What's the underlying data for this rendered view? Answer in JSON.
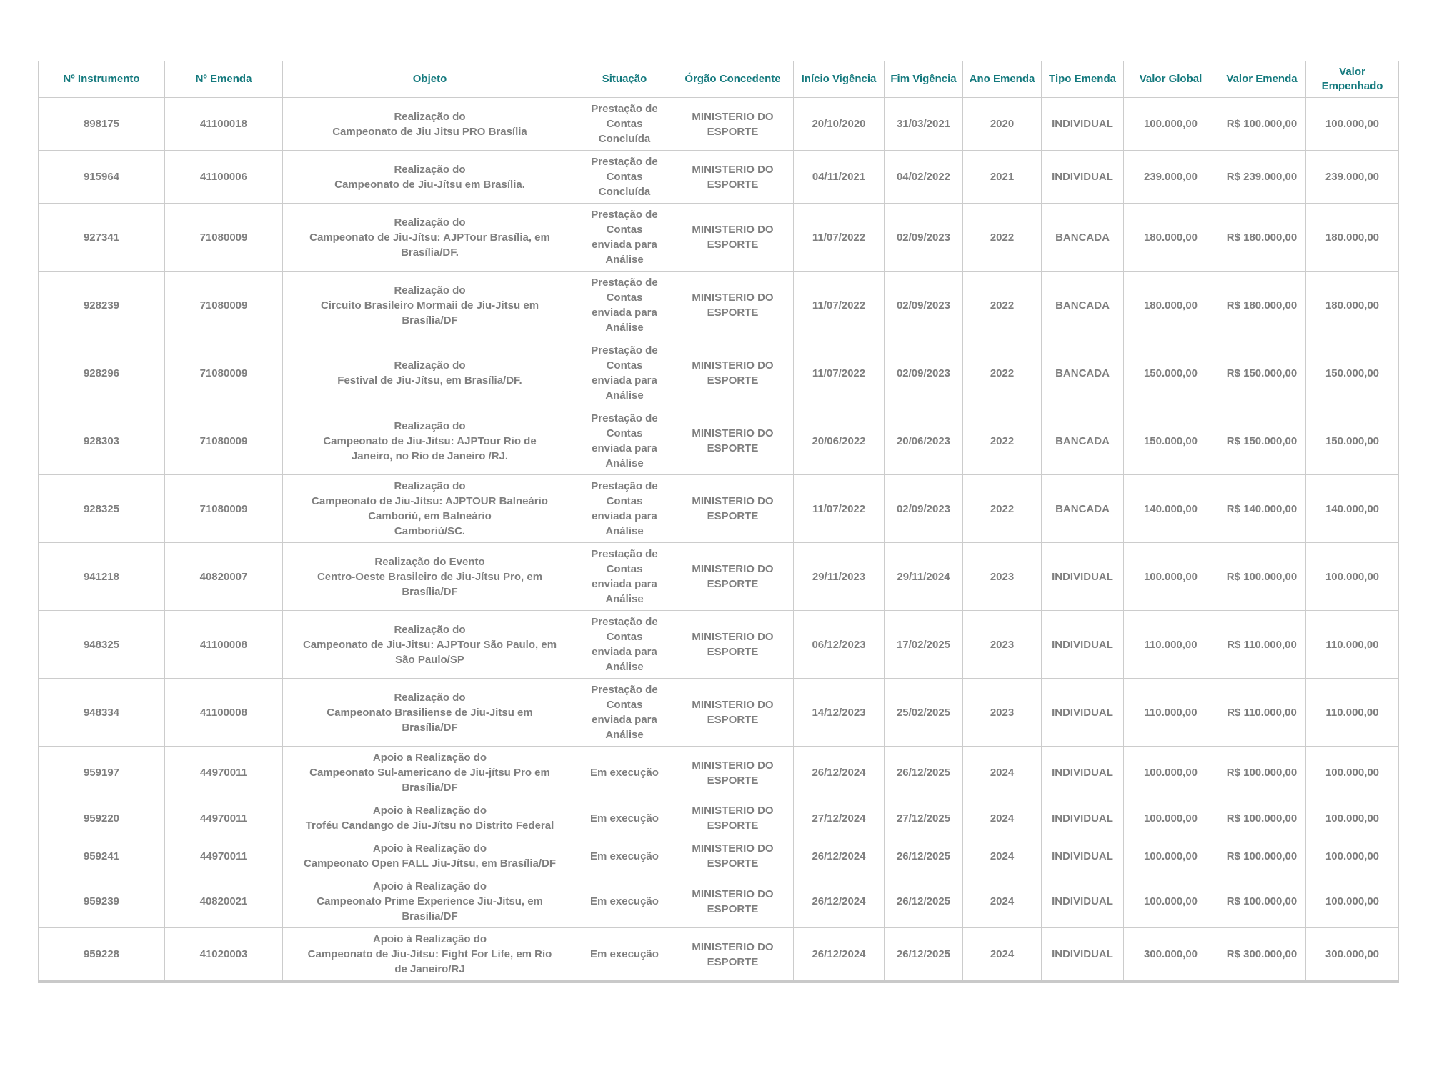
{
  "colors": {
    "header_text": "#157a7e",
    "body_text": "#7f7f7f",
    "border": "#cccccc",
    "bottom_border": "#c9c9c9",
    "background": "#ffffff"
  },
  "table": {
    "columns": [
      {
        "key": "instrumento",
        "label": "Nº Instrumento"
      },
      {
        "key": "emenda",
        "label": "Nº Emenda"
      },
      {
        "key": "objeto",
        "label": "Objeto"
      },
      {
        "key": "situacao",
        "label": "Situação"
      },
      {
        "key": "orgao",
        "label": "Órgão Concedente"
      },
      {
        "key": "inicio",
        "label": "Início Vigência"
      },
      {
        "key": "fim",
        "label": "Fim Vigência"
      },
      {
        "key": "ano",
        "label": "Ano Emenda"
      },
      {
        "key": "tipo",
        "label": "Tipo Emenda"
      },
      {
        "key": "valor_global",
        "label": "Valor Global"
      },
      {
        "key": "valor_emenda",
        "label": "Valor Emenda"
      },
      {
        "key": "valor_empenhado",
        "label": "Valor Empenhado"
      }
    ],
    "rows": [
      {
        "instrumento": "898175",
        "emenda": "41100018",
        "objeto": "Realização do\nCampeonato de Jiu Jitsu PRO Brasília",
        "situacao": "Prestação de\nContas\nConcluída",
        "orgao": "MINISTERIO DO\nESPORTE",
        "inicio": "20/10/2020",
        "fim": "31/03/2021",
        "ano": "2020",
        "tipo": "INDIVIDUAL",
        "valor_global": "100.000,00",
        "valor_emenda": "R$ 100.000,00",
        "valor_empenhado": "100.000,00"
      },
      {
        "instrumento": "915964",
        "emenda": "41100006",
        "objeto": "Realização do\nCampeonato de Jiu-Jítsu em Brasília.",
        "situacao": "Prestação de\nContas\nConcluída",
        "orgao": "MINISTERIO DO\nESPORTE",
        "inicio": "04/11/2021",
        "fim": "04/02/2022",
        "ano": "2021",
        "tipo": "INDIVIDUAL",
        "valor_global": "239.000,00",
        "valor_emenda": "R$ 239.000,00",
        "valor_empenhado": "239.000,00"
      },
      {
        "instrumento": "927341",
        "emenda": "71080009",
        "objeto": "Realização do\nCampeonato de Jiu-Jítsu: AJPTour Brasília, em\nBrasília/DF.",
        "situacao": "Prestação de\nContas\nenviada para\nAnálise",
        "orgao": "MINISTERIO DO\nESPORTE",
        "inicio": "11/07/2022",
        "fim": "02/09/2023",
        "ano": "2022",
        "tipo": "BANCADA",
        "valor_global": "180.000,00",
        "valor_emenda": "R$ 180.000,00",
        "valor_empenhado": "180.000,00"
      },
      {
        "instrumento": "928239",
        "emenda": "71080009",
        "objeto": "Realização do\nCircuito Brasileiro Mormaii de Jiu-Jitsu em\nBrasília/DF",
        "situacao": "Prestação de\nContas\nenviada para\nAnálise",
        "orgao": "MINISTERIO DO\nESPORTE",
        "inicio": "11/07/2022",
        "fim": "02/09/2023",
        "ano": "2022",
        "tipo": "BANCADA",
        "valor_global": "180.000,00",
        "valor_emenda": "R$ 180.000,00",
        "valor_empenhado": "180.000,00"
      },
      {
        "instrumento": "928296",
        "emenda": "71080009",
        "objeto": "Realização do\nFestival de Jiu-Jítsu, em Brasília/DF.",
        "situacao": "Prestação de\nContas\nenviada para\nAnálise",
        "orgao": "MINISTERIO DO\nESPORTE",
        "inicio": "11/07/2022",
        "fim": "02/09/2023",
        "ano": "2022",
        "tipo": "BANCADA",
        "valor_global": "150.000,00",
        "valor_emenda": "R$ 150.000,00",
        "valor_empenhado": "150.000,00"
      },
      {
        "instrumento": "928303",
        "emenda": "71080009",
        "objeto": "Realização do\nCampeonato de Jiu-Jitsu: AJPTour Rio de\nJaneiro, no Rio de Janeiro /RJ.",
        "situacao": "Prestação de\nContas\nenviada para\nAnálise",
        "orgao": "MINISTERIO DO\nESPORTE",
        "inicio": "20/06/2022",
        "fim": "20/06/2023",
        "ano": "2022",
        "tipo": "BANCADA",
        "valor_global": "150.000,00",
        "valor_emenda": "R$ 150.000,00",
        "valor_empenhado": "150.000,00"
      },
      {
        "instrumento": "928325",
        "emenda": "71080009",
        "objeto": "Realização do\nCampeonato de Jiu-Jítsu: AJPTOUR Balneário\nCamboriú, em Balneário\nCamboriú/SC.",
        "situacao": "Prestação de\nContas\nenviada para\nAnálise",
        "orgao": "MINISTERIO DO\nESPORTE",
        "inicio": "11/07/2022",
        "fim": "02/09/2023",
        "ano": "2022",
        "tipo": "BANCADA",
        "valor_global": "140.000,00",
        "valor_emenda": "R$ 140.000,00",
        "valor_empenhado": "140.000,00"
      },
      {
        "instrumento": "941218",
        "emenda": "40820007",
        "objeto": "Realização do Evento\nCentro-Oeste Brasileiro de Jiu-Jítsu Pro, em\nBrasília/DF",
        "situacao": "Prestação de\nContas\nenviada para\nAnálise",
        "orgao": "MINISTERIO DO\nESPORTE",
        "inicio": "29/11/2023",
        "fim": "29/11/2024",
        "ano": "2023",
        "tipo": "INDIVIDUAL",
        "valor_global": "100.000,00",
        "valor_emenda": "R$ 100.000,00",
        "valor_empenhado": "100.000,00"
      },
      {
        "instrumento": "948325",
        "emenda": "41100008",
        "objeto": "Realização do\nCampeonato de Jiu-Jitsu: AJPTour São Paulo, em\nSão Paulo/SP",
        "situacao": "Prestação de\nContas\nenviada para\nAnálise",
        "orgao": "MINISTERIO DO\nESPORTE",
        "inicio": "06/12/2023",
        "fim": "17/02/2025",
        "ano": "2023",
        "tipo": "INDIVIDUAL",
        "valor_global": "110.000,00",
        "valor_emenda": "R$ 110.000,00",
        "valor_empenhado": "110.000,00"
      },
      {
        "instrumento": "948334",
        "emenda": "41100008",
        "objeto": "Realização do\nCampeonato Brasiliense de Jiu-Jitsu em\nBrasília/DF",
        "situacao": "Prestação de\nContas\nenviada para\nAnálise",
        "orgao": "MINISTERIO DO\nESPORTE",
        "inicio": "14/12/2023",
        "fim": "25/02/2025",
        "ano": "2023",
        "tipo": "INDIVIDUAL",
        "valor_global": "110.000,00",
        "valor_emenda": "R$ 110.000,00",
        "valor_empenhado": "110.000,00"
      },
      {
        "instrumento": "959197",
        "emenda": "44970011",
        "objeto": "Apoio a Realização do\nCampeonato Sul-americano de Jiu-jítsu Pro em\nBrasília/DF",
        "situacao": "Em execução",
        "orgao": "MINISTERIO DO\nESPORTE",
        "inicio": "26/12/2024",
        "fim": "26/12/2025",
        "ano": "2024",
        "tipo": "INDIVIDUAL",
        "valor_global": "100.000,00",
        "valor_emenda": "R$ 100.000,00",
        "valor_empenhado": "100.000,00"
      },
      {
        "instrumento": "959220",
        "emenda": "44970011",
        "objeto": "Apoio à Realização do\nTroféu Candango de Jiu-Jítsu no Distrito Federal",
        "situacao": "Em execução",
        "orgao": "MINISTERIO DO\nESPORTE",
        "inicio": "27/12/2024",
        "fim": "27/12/2025",
        "ano": "2024",
        "tipo": "INDIVIDUAL",
        "valor_global": "100.000,00",
        "valor_emenda": "R$ 100.000,00",
        "valor_empenhado": "100.000,00"
      },
      {
        "instrumento": "959241",
        "emenda": "44970011",
        "objeto": "Apoio à Realização do\nCampeonato Open FALL Jiu-Jítsu, em Brasília/DF",
        "situacao": "Em execução",
        "orgao": "MINISTERIO DO\nESPORTE",
        "inicio": "26/12/2024",
        "fim": "26/12/2025",
        "ano": "2024",
        "tipo": "INDIVIDUAL",
        "valor_global": "100.000,00",
        "valor_emenda": "R$ 100.000,00",
        "valor_empenhado": "100.000,00"
      },
      {
        "instrumento": "959239",
        "emenda": "40820021",
        "objeto": "Apoio à Realização do\nCampeonato Prime Experience Jiu-Jitsu, em\nBrasília/DF",
        "situacao": "Em execução",
        "orgao": "MINISTERIO DO\nESPORTE",
        "inicio": "26/12/2024",
        "fim": "26/12/2025",
        "ano": "2024",
        "tipo": "INDIVIDUAL",
        "valor_global": "100.000,00",
        "valor_emenda": "R$ 100.000,00",
        "valor_empenhado": "100.000,00"
      },
      {
        "instrumento": "959228",
        "emenda": "41020003",
        "objeto": "Apoio à Realização do\nCampeonato de Jiu-Jitsu: Fight For Life, em Rio\nde Janeiro/RJ",
        "situacao": "Em execução",
        "orgao": "MINISTERIO DO\nESPORTE",
        "inicio": "26/12/2024",
        "fim": "26/12/2025",
        "ano": "2024",
        "tipo": "INDIVIDUAL",
        "valor_global": "300.000,00",
        "valor_emenda": "R$ 300.000,00",
        "valor_empenhado": "300.000,00"
      }
    ]
  }
}
